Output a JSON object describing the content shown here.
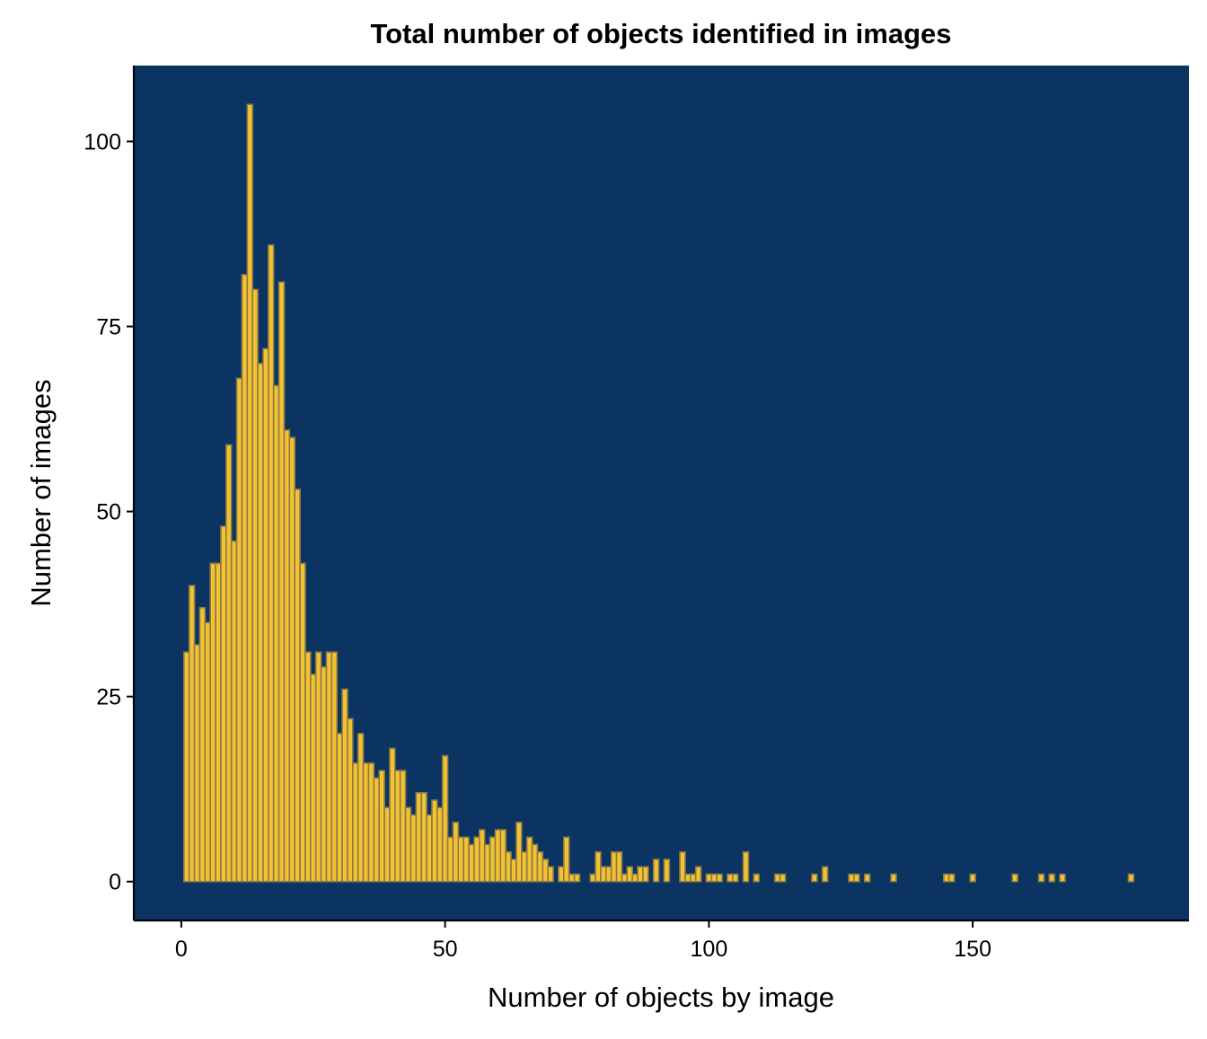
{
  "chart_data": {
    "type": "bar",
    "title": "Total number of objects identified in images",
    "xlabel": "Number of objects by image",
    "ylabel": "Number of images",
    "xlim": [
      -9,
      191
    ],
    "ylim": [
      -5.25,
      110.25
    ],
    "xticks": [
      0,
      50,
      100,
      150
    ],
    "yticks": [
      0,
      25,
      50,
      75,
      100
    ],
    "grid": false,
    "legend": "none",
    "colors": {
      "panel_background": "#0b3462",
      "bar_fill": "#f2c230",
      "bar_outline": "#8a7a4a",
      "axis": "#000000",
      "text": "#000000"
    },
    "bins": [
      {
        "x": 1,
        "count": 31
      },
      {
        "x": 2,
        "count": 40
      },
      {
        "x": 3,
        "count": 32
      },
      {
        "x": 4,
        "count": 37
      },
      {
        "x": 5,
        "count": 35
      },
      {
        "x": 6,
        "count": 43
      },
      {
        "x": 7,
        "count": 43
      },
      {
        "x": 8,
        "count": 48
      },
      {
        "x": 9,
        "count": 59
      },
      {
        "x": 10,
        "count": 46
      },
      {
        "x": 11,
        "count": 68
      },
      {
        "x": 12,
        "count": 82
      },
      {
        "x": 13,
        "count": 105
      },
      {
        "x": 14,
        "count": 80
      },
      {
        "x": 15,
        "count": 70
      },
      {
        "x": 16,
        "count": 72
      },
      {
        "x": 17,
        "count": 86
      },
      {
        "x": 18,
        "count": 67
      },
      {
        "x": 19,
        "count": 81
      },
      {
        "x": 20,
        "count": 61
      },
      {
        "x": 21,
        "count": 60
      },
      {
        "x": 22,
        "count": 53
      },
      {
        "x": 23,
        "count": 43
      },
      {
        "x": 24,
        "count": 31
      },
      {
        "x": 25,
        "count": 28
      },
      {
        "x": 26,
        "count": 31
      },
      {
        "x": 27,
        "count": 29
      },
      {
        "x": 28,
        "count": 31
      },
      {
        "x": 29,
        "count": 31
      },
      {
        "x": 30,
        "count": 20
      },
      {
        "x": 31,
        "count": 26
      },
      {
        "x": 32,
        "count": 22
      },
      {
        "x": 33,
        "count": 16
      },
      {
        "x": 34,
        "count": 20
      },
      {
        "x": 35,
        "count": 16
      },
      {
        "x": 36,
        "count": 16
      },
      {
        "x": 37,
        "count": 14
      },
      {
        "x": 38,
        "count": 15
      },
      {
        "x": 39,
        "count": 10
      },
      {
        "x": 40,
        "count": 18
      },
      {
        "x": 41,
        "count": 15
      },
      {
        "x": 42,
        "count": 15
      },
      {
        "x": 43,
        "count": 10
      },
      {
        "x": 44,
        "count": 9
      },
      {
        "x": 45,
        "count": 12
      },
      {
        "x": 46,
        "count": 12
      },
      {
        "x": 47,
        "count": 9
      },
      {
        "x": 48,
        "count": 11
      },
      {
        "x": 49,
        "count": 10
      },
      {
        "x": 50,
        "count": 17
      },
      {
        "x": 51,
        "count": 6
      },
      {
        "x": 52,
        "count": 8
      },
      {
        "x": 53,
        "count": 6
      },
      {
        "x": 54,
        "count": 6
      },
      {
        "x": 55,
        "count": 5
      },
      {
        "x": 56,
        "count": 6
      },
      {
        "x": 57,
        "count": 7
      },
      {
        "x": 58,
        "count": 5
      },
      {
        "x": 59,
        "count": 6
      },
      {
        "x": 60,
        "count": 7
      },
      {
        "x": 61,
        "count": 7
      },
      {
        "x": 62,
        "count": 4
      },
      {
        "x": 63,
        "count": 3
      },
      {
        "x": 64,
        "count": 8
      },
      {
        "x": 65,
        "count": 4
      },
      {
        "x": 66,
        "count": 6
      },
      {
        "x": 67,
        "count": 5
      },
      {
        "x": 68,
        "count": 4
      },
      {
        "x": 69,
        "count": 3
      },
      {
        "x": 70,
        "count": 2
      },
      {
        "x": 72,
        "count": 2
      },
      {
        "x": 73,
        "count": 6
      },
      {
        "x": 74,
        "count": 1
      },
      {
        "x": 75,
        "count": 1
      },
      {
        "x": 78,
        "count": 1
      },
      {
        "x": 79,
        "count": 4
      },
      {
        "x": 80,
        "count": 2
      },
      {
        "x": 81,
        "count": 2
      },
      {
        "x": 82,
        "count": 4
      },
      {
        "x": 83,
        "count": 4
      },
      {
        "x": 84,
        "count": 1
      },
      {
        "x": 85,
        "count": 2
      },
      {
        "x": 86,
        "count": 1
      },
      {
        "x": 87,
        "count": 2
      },
      {
        "x": 88,
        "count": 2
      },
      {
        "x": 90,
        "count": 3
      },
      {
        "x": 92,
        "count": 3
      },
      {
        "x": 95,
        "count": 4
      },
      {
        "x": 96,
        "count": 1
      },
      {
        "x": 97,
        "count": 1
      },
      {
        "x": 98,
        "count": 2
      },
      {
        "x": 100,
        "count": 1
      },
      {
        "x": 101,
        "count": 1
      },
      {
        "x": 102,
        "count": 1
      },
      {
        "x": 104,
        "count": 1
      },
      {
        "x": 105,
        "count": 1
      },
      {
        "x": 107,
        "count": 4
      },
      {
        "x": 109,
        "count": 1
      },
      {
        "x": 113,
        "count": 1
      },
      {
        "x": 114,
        "count": 1
      },
      {
        "x": 120,
        "count": 1
      },
      {
        "x": 122,
        "count": 2
      },
      {
        "x": 127,
        "count": 1
      },
      {
        "x": 128,
        "count": 1
      },
      {
        "x": 130,
        "count": 1
      },
      {
        "x": 135,
        "count": 1
      },
      {
        "x": 145,
        "count": 1
      },
      {
        "x": 146,
        "count": 1
      },
      {
        "x": 150,
        "count": 1
      },
      {
        "x": 158,
        "count": 1
      },
      {
        "x": 163,
        "count": 1
      },
      {
        "x": 165,
        "count": 1
      },
      {
        "x": 167,
        "count": 1
      },
      {
        "x": 180,
        "count": 1
      }
    ]
  }
}
